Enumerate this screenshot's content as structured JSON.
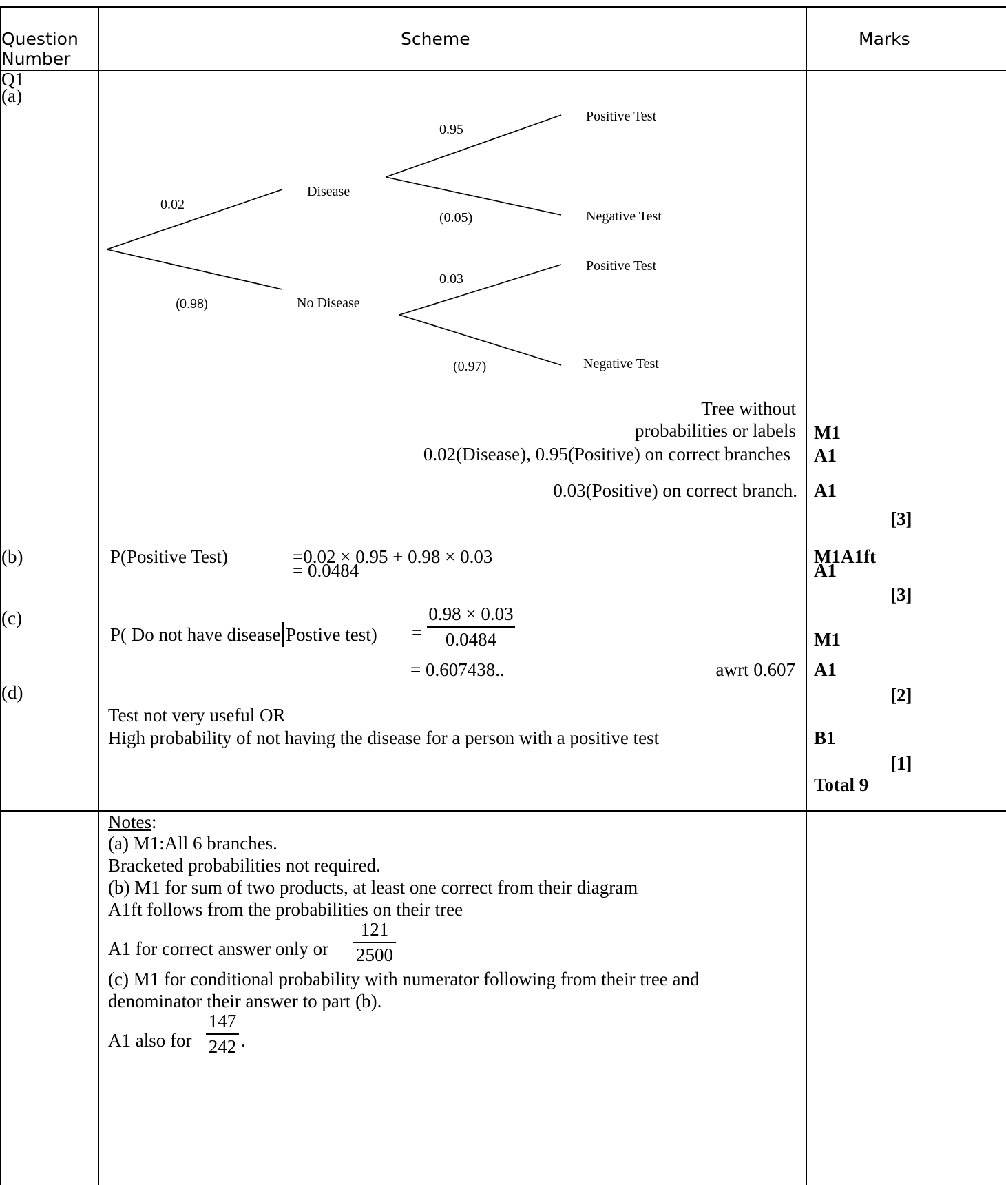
{
  "header": {
    "question_number": "Question Number",
    "scheme": "Scheme",
    "marks": "Marks"
  },
  "question": {
    "label": "Q1"
  },
  "parts": {
    "a": "(a)",
    "b": "(b)",
    "c": "(c)",
    "d": "(d)"
  },
  "tree": {
    "p_disease": "0.02",
    "p_no_disease": "(0.98)",
    "disease": "Disease",
    "no_disease": "No Disease",
    "p_pos_given_disease": "0.95",
    "p_neg_given_disease": "(0.05)",
    "p_pos_given_no_disease": "0.03",
    "p_neg_given_no_disease": "(0.97)",
    "positive": "Positive Test",
    "negative": "Negative Test"
  },
  "part_a": {
    "crit1_line1": "Tree without",
    "crit1_line2": "probabilities or labels",
    "crit2": "0.02(Disease), 0.95(Positive) on correct branches",
    "crit3": "0.03(Positive) on correct branch.",
    "mark1": "M1",
    "mark2": "A1",
    "mark3": "A1",
    "total": "[3]"
  },
  "part_b": {
    "lhs": "P(Positive Test)",
    "rhs1": "=0.02 × 0.95 + 0.98 × 0.03",
    "rhs2": "= 0.0484",
    "mark1": "M1A1ft",
    "mark2": "A1",
    "total": "[3]"
  },
  "part_c": {
    "lhs_1": "P( Do not have disease",
    "lhs_2": "Postive test)",
    "eq": "=",
    "num": "0.98 × 0.03",
    "den": "0.0484",
    "result": "= 0.607438..",
    "awrt": "awrt 0.607",
    "mark1": "M1",
    "mark2": "A1",
    "total": "[2]"
  },
  "part_d": {
    "line1": "Test not very useful OR",
    "line2": "High probability of not having the disease for a person with a positive test",
    "mark1": "B1",
    "total": "[1]",
    "grand_total": "Total 9"
  },
  "notes": {
    "heading": "Notes",
    "colon": ":",
    "n1": "(a) M1:All 6 branches.",
    "n2": "Bracketed probabilities not required.",
    "n3": "(b) M1 for sum of two products, at least one correct from their diagram",
    "n4": "A1ft follows from the probabilities on their tree",
    "n5": "A1 for correct answer only or",
    "n5_num": "121",
    "n5_den": "2500",
    "n6": "(c) M1 for conditional probability with numerator following from their tree and",
    "n7": "denominator their answer to part (b).",
    "n8": "A1 also for",
    "n8_num": "147",
    "n8_den": "242",
    "n8_end": "."
  }
}
